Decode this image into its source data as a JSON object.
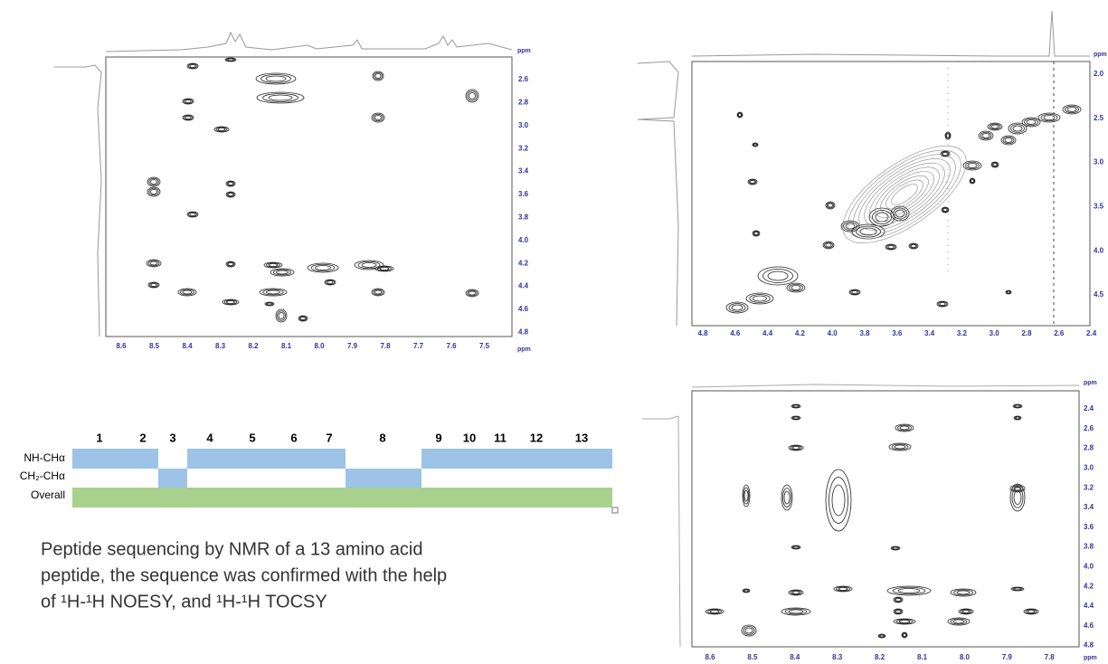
{
  "panels": [
    {
      "unit": "ppm",
      "xticks": [
        "8.6",
        "8.5",
        "8.4",
        "8.3",
        "8.2",
        "8.1",
        "8.0",
        "7.9",
        "7.8",
        "7.7",
        "7.6",
        "7.5"
      ],
      "yticks": [
        "2.6",
        "2.8",
        "3.0",
        "3.2",
        "3.4",
        "3.6",
        "3.8",
        "4.0",
        "4.2",
        "4.4",
        "4.6",
        "4.8"
      ]
    },
    {
      "unit": "ppm",
      "xticks": [
        "4.8",
        "4.6",
        "4.4",
        "4.2",
        "4.0",
        "3.8",
        "3.6",
        "3.4",
        "3.2",
        "3.0",
        "2.8",
        "2.6",
        "2.4"
      ],
      "yticks": [
        "2.0",
        "2.5",
        "3.0",
        "3.5",
        "4.0",
        "4.5"
      ]
    },
    {
      "unit": "ppm",
      "xticks": [
        "8.6",
        "8.5",
        "8.4",
        "8.3",
        "8.2",
        "8.1",
        "8.0",
        "7.9",
        "7.8"
      ],
      "yticks": [
        "2.4",
        "2.6",
        "2.8",
        "3.0",
        "3.2",
        "3.4",
        "3.6",
        "3.8",
        "4.0",
        "4.2",
        "4.4",
        "4.6",
        "4.8"
      ]
    }
  ],
  "sequence": {
    "residues": [
      "1",
      "2",
      "3",
      "4",
      "5",
      "6",
      "7",
      "8",
      "9",
      "10",
      "11",
      "12",
      "13"
    ],
    "rows": [
      "NH-CHα",
      "CH₂-CHα",
      "Overall"
    ]
  },
  "caption": [
    "Peptide sequencing by NMR of a 13 amino acid",
    "peptide, the sequence was confirmed with the help",
    "of ¹H-¹H NOESY, and ¹H-¹H TOCSY"
  ]
}
